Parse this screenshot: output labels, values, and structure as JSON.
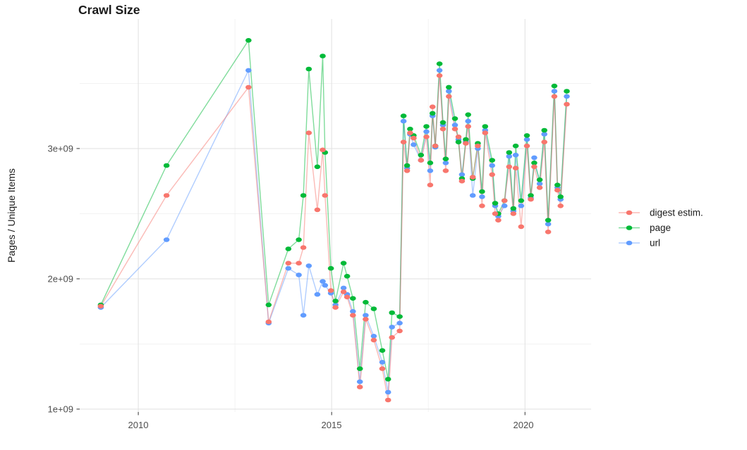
{
  "chart_data": {
    "type": "line",
    "title": "Crawl Size",
    "ylabel": "Pages / Unique Items",
    "xlabel": "",
    "values_unit": "1e9 (billions of pages / unique items)",
    "grid": true,
    "legend_position": "right",
    "point_shape": "ellipse",
    "xlim": [
      2008.485,
      2021.71
    ],
    "ylim": [
      0.978,
      3.994
    ],
    "x_ticks": {
      "values": [
        2010,
        2015,
        2020
      ],
      "labels": [
        "2010",
        "2015",
        "2020"
      ]
    },
    "x_minor_ticks": [
      2012.5,
      2017.5
    ],
    "y_ticks": {
      "values": [
        1,
        2,
        3
      ],
      "labels": [
        "1e+09",
        "2e+09",
        "3e+09"
      ]
    },
    "y_minor_ticks": [
      1.5,
      2.5,
      3.5
    ],
    "x": [
      2009.03,
      2010.73,
      2012.85,
      2013.37,
      2013.88,
      2014.15,
      2014.27,
      2014.41,
      2014.63,
      2014.77,
      2014.83,
      2014.98,
      2015.1,
      2015.31,
      2015.4,
      2015.55,
      2015.73,
      2015.88,
      2016.09,
      2016.31,
      2016.46,
      2016.56,
      2016.76,
      2016.86,
      2016.95,
      2017.03,
      2017.12,
      2017.31,
      2017.45,
      2017.55,
      2017.61,
      2017.68,
      2017.79,
      2017.88,
      2017.95,
      2018.03,
      2018.19,
      2018.28,
      2018.37,
      2018.47,
      2018.53,
      2018.65,
      2018.78,
      2018.89,
      2018.97,
      2019.15,
      2019.23,
      2019.31,
      2019.47,
      2019.59,
      2019.7,
      2019.76,
      2019.9,
      2020.05,
      2020.15,
      2020.24,
      2020.38,
      2020.5,
      2020.6,
      2020.76,
      2020.84,
      2020.92,
      2021.08
    ],
    "series": [
      {
        "name": "digest estim.",
        "color": "#F8766D",
        "values": [
          1.79,
          2.64,
          3.47,
          1.67,
          2.12,
          2.12,
          2.24,
          3.12,
          2.53,
          2.99,
          2.64,
          1.91,
          1.78,
          1.9,
          1.86,
          1.72,
          1.17,
          1.69,
          1.53,
          1.31,
          1.07,
          1.55,
          1.6,
          3.05,
          2.83,
          3.12,
          3.08,
          2.91,
          3.09,
          2.72,
          3.32,
          3.02,
          3.56,
          3.15,
          2.83,
          3.4,
          3.15,
          3.09,
          2.75,
          3.04,
          3.17,
          2.78,
          3.02,
          2.56,
          3.12,
          2.8,
          2.5,
          2.45,
          2.6,
          2.86,
          2.5,
          2.85,
          2.4,
          3.02,
          2.61,
          2.86,
          2.7,
          3.05,
          2.36,
          3.4,
          2.68,
          2.56,
          3.34
        ]
      },
      {
        "name": "page",
        "color": "#00BA38",
        "values": [
          1.8,
          2.87,
          3.83,
          1.8,
          2.23,
          2.3,
          2.64,
          3.61,
          2.86,
          3.71,
          2.97,
          2.08,
          1.83,
          2.12,
          2.02,
          1.85,
          1.31,
          1.82,
          1.77,
          1.45,
          1.23,
          1.74,
          1.71,
          3.25,
          2.87,
          3.15,
          3.1,
          2.95,
          3.17,
          2.89,
          3.27,
          3.02,
          3.65,
          3.2,
          2.92,
          3.47,
          3.23,
          3.05,
          2.77,
          3.07,
          3.26,
          2.77,
          3.04,
          2.67,
          3.17,
          2.91,
          2.58,
          2.5,
          2.6,
          2.97,
          2.54,
          3.02,
          2.6,
          3.1,
          2.64,
          2.89,
          2.76,
          3.14,
          2.45,
          3.48,
          2.72,
          2.63,
          3.44
        ]
      },
      {
        "name": "url",
        "color": "#619CFF",
        "values": [
          1.78,
          2.3,
          3.6,
          1.66,
          2.08,
          2.03,
          1.72,
          2.1,
          1.88,
          1.98,
          1.95,
          1.89,
          1.8,
          1.93,
          1.88,
          1.75,
          1.21,
          1.72,
          1.56,
          1.36,
          1.13,
          1.63,
          1.66,
          3.21,
          2.85,
          3.11,
          3.03,
          2.91,
          3.13,
          2.83,
          3.25,
          3.01,
          3.6,
          3.18,
          2.89,
          3.44,
          3.18,
          3.07,
          2.8,
          3.05,
          3.21,
          2.64,
          3.0,
          2.63,
          3.14,
          2.87,
          2.56,
          2.48,
          2.56,
          2.94,
          2.52,
          2.95,
          2.56,
          3.07,
          2.62,
          2.93,
          2.73,
          3.11,
          2.42,
          3.44,
          2.7,
          2.61,
          3.4
        ]
      }
    ],
    "style": {
      "grid_major_color": "#E3E3E3",
      "grid_minor_color": "#F0F0F0",
      "tick_color": "#333333",
      "axis_text_color": "#4d4d4d",
      "title_color": "#1a1a1a",
      "line_opacity": 0.5
    }
  }
}
